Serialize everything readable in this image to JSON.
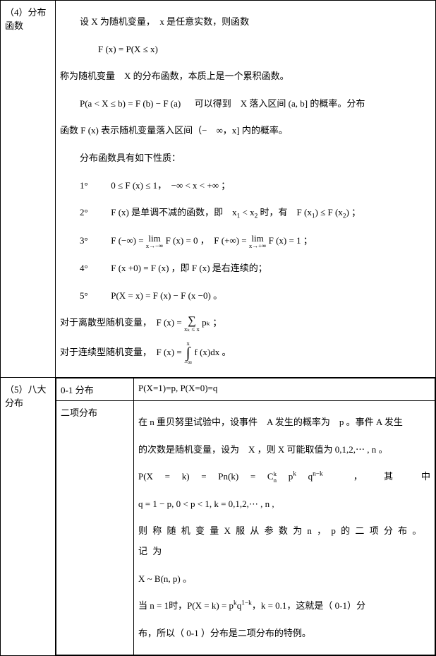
{
  "row4": {
    "label_l1": "（4）分布",
    "label_l2": "函数",
    "intro1": "设 X 为随机变量，　x 是任意实数，则函数",
    "eq1": "F (x) = P(X ≤ x)",
    "intro2": "称为随机变量　X 的分布函数，本质上是一个累积函数。",
    "eq2_left": "P(a < X ≤ b) = F (b) − F (a)",
    "eq2_right": "可以得到　X 落入区间 (a, b] 的概率。分布",
    "intro3": "函数 F (x) 表示随机变量落入区间（−　∞，x] 内的概率。",
    "props_head": "分布函数具有如下性质：",
    "p1_no": "1°",
    "p1_body": "0 ≤ F (x) ≤ 1，　−∞ < x < +∞ ；",
    "p2_no": "2°",
    "p2_body_a": "F (x) 是单调不减的函数，即　x",
    "p2_x1": "1",
    "p2_lt": " < x",
    "p2_x2": "2",
    "p2_body_b": " 时，有　F (x",
    "p2_body_c": ") ≤ F (x",
    "p2_body_d": ") ；",
    "p3_no": "3°",
    "p3_a": "F (−∞) = ",
    "p3_lim1_top": "lim",
    "p3_lim1_bot": "x→−∞",
    "p3_b": " F (x) = 0 ，　F (+∞) = ",
    "p3_lim2_top": "lim",
    "p3_lim2_bot": "x→+∞",
    "p3_c": " F (x) = 1 ；",
    "p4_no": "4°",
    "p4_body": "F (x +0) = F (x) ，即 F (x) 是右连续的；",
    "p5_no": "5°",
    "p5_body": "P(X = x) = F (x) − F (x −0) 。",
    "discrete_a": "对于离散型随机变量，　F (x) = ",
    "sum_mid": "∑",
    "sum_bot": "xₖ ≤ x",
    "discrete_b": " pₖ ；",
    "cont_a": "对于连续型随机变量，　F (x) = ",
    "int_top": "x",
    "int_mid": "∫",
    "int_bot": "−∞",
    "cont_b": " f (x)dx 。"
  },
  "row5": {
    "label_l1": "（5）八大",
    "label_l2": "分布",
    "dist1_name": "0-1 分布",
    "dist1_body": "P(X=1)=p, P(X=0)=q",
    "dist2_name": "二项分布",
    "b_line1_a": "在 n 重贝努里试验中，设事件　A 发生的概率为　p 。事件 A 发生",
    "b_line1_b": "的次数是随机变量，设为　X ，则 X 可能取值为 0,1,2,⋯ , n 。",
    "b_eq_left": "P(X = k) = Pn(k) = C",
    "b_eq_Cn_top": "k",
    "b_eq_Cn_bot": "n",
    "b_eq_mid1": " p",
    "b_eq_pk": "k",
    "b_eq_mid2": " q",
    "b_eq_qnk": "n−k",
    "b_eq_comma": "，",
    "b_eq_right": "其　中",
    "b_cond": "q = 1 − p, 0 < p < 1, k = 0,1,2,⋯ , n ,",
    "b_line3": "则 称 随 机 变 量 X 服 从 参 数 为 n ， p 的 二 项 分 布 。 记 为",
    "b_line4": "X ~ B(n, p) 。",
    "b_line5_a": "当 n = 1时，P(X = k) = p",
    "b_line5_pk": "k",
    "b_line5_b": "q",
    "b_line5_qk": "1−k",
    "b_line5_c": "，k = 0.1，这就是（ 0-1）分",
    "b_line5_d": "布，所以（ 0-1 ）分布是二项分布的特例。"
  }
}
